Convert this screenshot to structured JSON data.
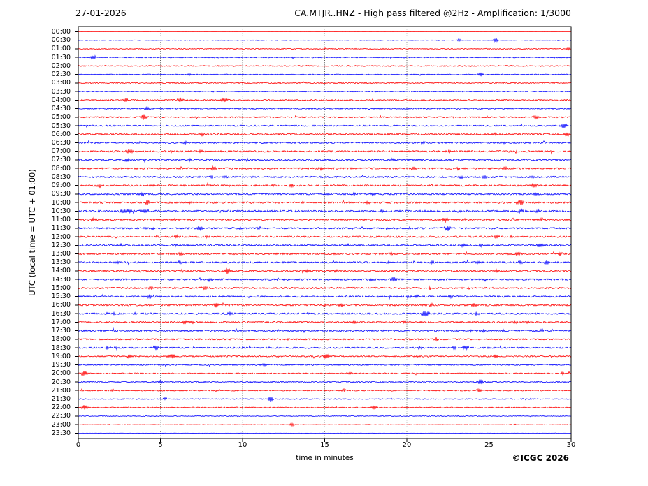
{
  "header": {
    "date": "27-01-2026",
    "title": "CA.MTJR..HNZ - High pass filtered @2Hz - Amplification: 1/3000"
  },
  "axes": {
    "y_label": "UTC (local time = UTC + 01:00)",
    "x_label": "time in minutes"
  },
  "footer": {
    "copyright": "©ICGC 2026"
  },
  "chart_data": {
    "type": "line",
    "subtype": "helicorder-seismogram-day-plot",
    "station": "CA.MTJR..HNZ",
    "date": "27-01-2026",
    "filter": "High pass filtered @2Hz",
    "amplification": "1/3000",
    "minutes_per_row": 30,
    "x_range_minutes": [
      0,
      30
    ],
    "x_ticks": [
      0,
      5,
      10,
      15,
      20,
      25,
      30
    ],
    "grid_minutes": [
      5,
      10,
      15,
      20,
      25
    ],
    "colors": {
      "r": "#ff0000",
      "b": "#0000ff",
      "grid": "#3a3a3a",
      "axis": "#000000"
    },
    "rows": [
      {
        "t": "00:00",
        "c": "r",
        "noise": 0.12,
        "events": []
      },
      {
        "t": "00:30",
        "c": "b",
        "noise": 0.35,
        "events": [
          [
            23.2,
            2
          ],
          [
            25.4,
            3
          ]
        ]
      },
      {
        "t": "01:00",
        "c": "r",
        "noise": 0.55,
        "events": [
          [
            29.8,
            2
          ]
        ]
      },
      {
        "t": "01:30",
        "c": "b",
        "noise": 0.6,
        "events": [
          [
            0.9,
            4
          ],
          [
            13,
            1.5
          ]
        ]
      },
      {
        "t": "02:00",
        "c": "r",
        "noise": 0.7,
        "events": []
      },
      {
        "t": "02:30",
        "c": "b",
        "noise": 0.5,
        "events": [
          [
            6.8,
            2
          ],
          [
            24.5,
            3
          ]
        ]
      },
      {
        "t": "03:00",
        "c": "r",
        "noise": 0.7,
        "events": []
      },
      {
        "t": "03:30",
        "c": "b",
        "noise": 0.5,
        "events": []
      },
      {
        "t": "04:00",
        "c": "r",
        "noise": 0.8,
        "events": [
          [
            2.9,
            2.5
          ],
          [
            6.2,
            3.5
          ],
          [
            8.9,
            3.5
          ]
        ]
      },
      {
        "t": "04:30",
        "c": "b",
        "noise": 0.7,
        "events": [
          [
            4.2,
            3
          ]
        ]
      },
      {
        "t": "05:00",
        "c": "r",
        "noise": 0.8,
        "events": [
          [
            4,
            4
          ],
          [
            27.9,
            3.5
          ]
        ]
      },
      {
        "t": "05:30",
        "c": "b",
        "noise": 0.8,
        "events": [
          [
            29.6,
            4
          ]
        ]
      },
      {
        "t": "06:00",
        "c": "r",
        "noise": 1,
        "events": [
          [
            7.5,
            3
          ],
          [
            18.9,
            2
          ],
          [
            25.4,
            2
          ],
          [
            29.7,
            3
          ]
        ]
      },
      {
        "t": "06:30",
        "c": "b",
        "noise": 0.9,
        "events": [
          [
            6.5,
            2
          ],
          [
            21,
            2
          ],
          [
            25.8,
            2
          ]
        ]
      },
      {
        "t": "07:00",
        "c": "r",
        "noise": 1,
        "events": [
          [
            3.1,
            3.5
          ],
          [
            5.7,
            2
          ],
          [
            7.5,
            2
          ],
          [
            22.6,
            2.5
          ]
        ]
      },
      {
        "t": "07:30",
        "c": "b",
        "noise": 1,
        "events": [
          [
            3,
            3
          ],
          [
            6.8,
            2
          ],
          [
            10.3,
            2
          ],
          [
            19.1,
            2
          ]
        ]
      },
      {
        "t": "08:00",
        "c": "r",
        "noise": 1,
        "events": [
          [
            8.2,
            3
          ],
          [
            14.8,
            2
          ],
          [
            20.4,
            2.5
          ],
          [
            23.1,
            2
          ],
          [
            26,
            2.5
          ]
        ]
      },
      {
        "t": "08:30",
        "c": "b",
        "noise": 1,
        "events": [
          [
            8.1,
            2.5
          ],
          [
            8.9,
            2.5
          ],
          [
            14.8,
            2
          ],
          [
            23.3,
            2
          ],
          [
            24.7,
            2.5
          ],
          [
            27.6,
            2
          ]
        ]
      },
      {
        "t": "09:00",
        "c": "r",
        "noise": 1,
        "events": [
          [
            1.3,
            2.5
          ],
          [
            11.8,
            2
          ],
          [
            13,
            2.5
          ],
          [
            27.7,
            3
          ]
        ]
      },
      {
        "t": "09:30",
        "c": "b",
        "noise": 1,
        "events": [
          [
            3.9,
            3
          ],
          [
            16.8,
            2
          ],
          [
            17.9,
            2.5
          ],
          [
            27.9,
            2.5
          ]
        ]
      },
      {
        "t": "10:00",
        "c": "r",
        "noise": 1.05,
        "events": [
          [
            4.2,
            3
          ],
          [
            6.8,
            2
          ],
          [
            17.6,
            2.5
          ],
          [
            26.9,
            4
          ]
        ]
      },
      {
        "t": "10:30",
        "c": "b",
        "noise": 1.15,
        "events": [
          [
            2.9,
            3,
            0.5
          ],
          [
            4.1,
            3,
            0.4
          ],
          [
            18.5,
            2
          ],
          [
            23.2,
            2
          ],
          [
            26.9,
            3
          ],
          [
            28,
            2.5
          ]
        ]
      },
      {
        "t": "11:00",
        "c": "r",
        "noise": 1,
        "events": [
          [
            0.9,
            3
          ],
          [
            5.9,
            2
          ],
          [
            22.3,
            4
          ],
          [
            28.2,
            2.5
          ]
        ]
      },
      {
        "t": "11:30",
        "c": "b",
        "noise": 1.05,
        "events": [
          [
            4.6,
            2
          ],
          [
            7.4,
            3.5
          ],
          [
            9.9,
            2
          ],
          [
            11,
            2
          ],
          [
            18.8,
            2
          ],
          [
            22.5,
            4
          ]
        ]
      },
      {
        "t": "12:00",
        "c": "r",
        "noise": 1,
        "events": [
          [
            6,
            2.5
          ],
          [
            7.8,
            2
          ],
          [
            25.5,
            2.5
          ],
          [
            26.3,
            2
          ]
        ]
      },
      {
        "t": "12:30",
        "c": "b",
        "noise": 1,
        "events": [
          [
            2.6,
            2.5
          ],
          [
            6,
            2.5
          ],
          [
            16.4,
            2
          ],
          [
            23.4,
            2
          ],
          [
            24.5,
            2.5
          ],
          [
            28.1,
            3.5
          ]
        ]
      },
      {
        "t": "13:00",
        "c": "r",
        "noise": 1,
        "events": [
          [
            6.2,
            2
          ],
          [
            19,
            2
          ],
          [
            26.8,
            2.5
          ],
          [
            29.3,
            3
          ]
        ]
      },
      {
        "t": "13:30",
        "c": "b",
        "noise": 1,
        "events": [
          [
            2.3,
            2.5
          ],
          [
            6.2,
            2.5
          ],
          [
            18.8,
            2
          ],
          [
            21.5,
            2
          ],
          [
            24.4,
            2.5
          ],
          [
            26.9,
            2.5
          ],
          [
            28.5,
            3.5
          ]
        ]
      },
      {
        "t": "14:00",
        "c": "r",
        "noise": 1,
        "events": [
          [
            6.3,
            2.5
          ],
          [
            9.1,
            5
          ],
          [
            14,
            2.5
          ],
          [
            15.7,
            2
          ],
          [
            25.5,
            2.5
          ]
        ]
      },
      {
        "t": "14:30",
        "c": "b",
        "noise": 1,
        "events": [
          [
            8,
            2.5
          ],
          [
            12.1,
            2
          ],
          [
            17.8,
            2
          ],
          [
            19.2,
            3.5
          ]
        ]
      },
      {
        "t": "15:00",
        "c": "r",
        "noise": 1,
        "events": [
          [
            4.4,
            3
          ],
          [
            7.7,
            2.5,
            0.3
          ],
          [
            21.4,
            2
          ]
        ]
      },
      {
        "t": "15:30",
        "c": "b",
        "noise": 1,
        "events": [
          [
            4.3,
            3
          ],
          [
            20.1,
            2
          ],
          [
            20.6,
            2
          ],
          [
            22.6,
            2.5
          ]
        ]
      },
      {
        "t": "16:00",
        "c": "r",
        "noise": 1,
        "events": [
          [
            8.4,
            3
          ],
          [
            15,
            2
          ],
          [
            16,
            2
          ],
          [
            21.5,
            2
          ],
          [
            24.1,
            2.5
          ]
        ]
      },
      {
        "t": "16:30",
        "c": "b",
        "noise": 1,
        "events": [
          [
            2.2,
            2
          ],
          [
            3.5,
            2.5
          ],
          [
            9.2,
            2.5
          ],
          [
            21.1,
            5
          ],
          [
            24.3,
            2.5
          ]
        ]
      },
      {
        "t": "17:00",
        "c": "r",
        "noise": 1,
        "events": [
          [
            6.5,
            2.5
          ],
          [
            6.9,
            2.5
          ],
          [
            16.8,
            2
          ],
          [
            19.9,
            2
          ],
          [
            26.6,
            2.5
          ],
          [
            27.4,
            2
          ]
        ]
      },
      {
        "t": "17:30",
        "c": "b",
        "noise": 1,
        "events": [
          [
            23.9,
            2
          ],
          [
            24.7,
            2
          ],
          [
            25.9,
            2
          ],
          [
            28.2,
            2.5
          ]
        ]
      },
      {
        "t": "18:00",
        "c": "r",
        "noise": 0.9,
        "events": [
          [
            12.8,
            2.5
          ],
          [
            21.8,
            2
          ]
        ]
      },
      {
        "t": "18:30",
        "c": "b",
        "noise": 0.9,
        "events": [
          [
            1.8,
            2.5
          ],
          [
            2.3,
            2.5
          ],
          [
            4.7,
            3.5
          ],
          [
            20.8,
            2.5
          ],
          [
            22.9,
            2.5
          ],
          [
            23.6,
            3.5
          ]
        ]
      },
      {
        "t": "19:00",
        "c": "r",
        "noise": 0.8,
        "events": [
          [
            3.1,
            2.5
          ],
          [
            5.7,
            3,
            0.3
          ],
          [
            15.1,
            3,
            0.3
          ],
          [
            25.4,
            2.5
          ]
        ]
      },
      {
        "t": "19:30",
        "c": "b",
        "noise": 0.7,
        "events": [
          [
            11.3,
            2.5
          ]
        ]
      },
      {
        "t": "20:00",
        "c": "r",
        "noise": 0.7,
        "events": [
          [
            0.35,
            4.5
          ],
          [
            16.5,
            2
          ],
          [
            29.5,
            2.5
          ]
        ]
      },
      {
        "t": "20:30",
        "c": "b",
        "noise": 0.7,
        "events": [
          [
            5,
            2.5
          ],
          [
            24.5,
            4
          ]
        ]
      },
      {
        "t": "21:00",
        "c": "r",
        "noise": 0.7,
        "events": [
          [
            2.1,
            2
          ],
          [
            8.5,
            2
          ],
          [
            16.2,
            2
          ],
          [
            24.4,
            3
          ]
        ]
      },
      {
        "t": "21:30",
        "c": "b",
        "noise": 0.6,
        "events": [
          [
            5.3,
            2
          ],
          [
            11.7,
            4
          ]
        ]
      },
      {
        "t": "22:00",
        "c": "r",
        "noise": 0.6,
        "events": [
          [
            0.4,
            4
          ],
          [
            18,
            3.5
          ]
        ]
      },
      {
        "t": "22:30",
        "c": "b",
        "noise": 0.45,
        "events": []
      },
      {
        "t": "23:00",
        "c": "r",
        "noise": 0.3,
        "events": [
          [
            13,
            2.5
          ]
        ]
      },
      {
        "t": "23:30",
        "c": "b",
        "noise": 0.12,
        "events": []
      }
    ]
  }
}
